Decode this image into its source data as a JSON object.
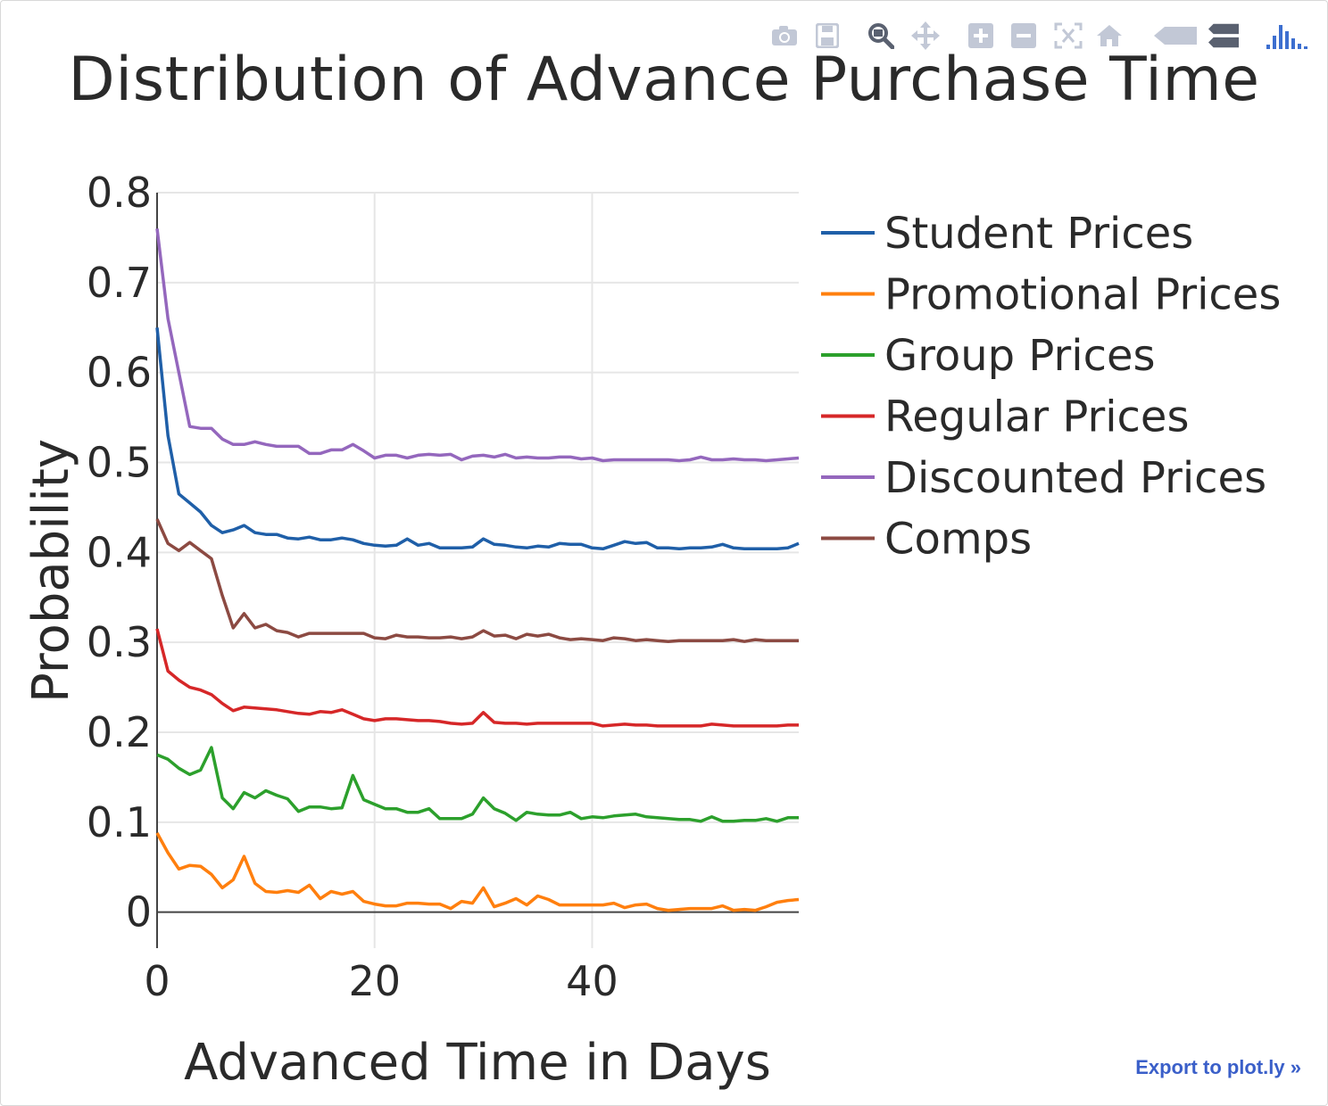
{
  "modebar": [
    {
      "name": "camera-icon"
    },
    {
      "name": "save-icon"
    },
    {
      "name": "zoom-icon"
    },
    {
      "name": "pan-icon"
    },
    {
      "name": "zoom-in-icon"
    },
    {
      "name": "zoom-out-icon"
    },
    {
      "name": "autoscale-icon"
    },
    {
      "name": "home-icon"
    },
    {
      "name": "hover-closest-icon"
    },
    {
      "name": "hover-compare-icon"
    },
    {
      "name": "plotly-logo-icon"
    }
  ],
  "export_link": "Export to plot.ly »",
  "chart_data": {
    "type": "line",
    "title": "Distribution of Advance Purchase Time",
    "xlabel": "Advanced Time in Days",
    "ylabel": "Probability",
    "xlim": [
      0,
      59
    ],
    "ylim": [
      -0.04,
      0.8
    ],
    "xticks": [
      0,
      20,
      40
    ],
    "xtick_labels": [
      "0",
      "20",
      "40"
    ],
    "yticks": [
      0,
      0.1,
      0.2,
      0.3,
      0.4,
      0.5,
      0.6,
      0.7,
      0.8
    ],
    "ytick_labels": [
      "0",
      "0.1",
      "0.2",
      "0.3",
      "0.4",
      "0.5",
      "0.6",
      "0.7",
      "0.8"
    ],
    "grid": true,
    "legend_position": "top-right outside plot",
    "x": [
      0,
      1,
      2,
      3,
      4,
      5,
      6,
      7,
      8,
      9,
      10,
      11,
      12,
      13,
      14,
      15,
      16,
      17,
      18,
      19,
      20,
      21,
      22,
      23,
      24,
      25,
      26,
      27,
      28,
      29,
      30,
      31,
      32,
      33,
      34,
      35,
      36,
      37,
      38,
      39,
      40,
      41,
      42,
      43,
      44,
      45,
      46,
      47,
      48,
      49,
      50,
      51,
      52,
      53,
      54,
      55,
      56,
      57,
      58,
      59
    ],
    "series": [
      {
        "name": "Student Prices",
        "color": "#1f5fa8",
        "values": [
          0.65,
          0.53,
          0.465,
          0.455,
          0.445,
          0.43,
          0.422,
          0.425,
          0.43,
          0.422,
          0.42,
          0.42,
          0.416,
          0.415,
          0.417,
          0.414,
          0.414,
          0.416,
          0.414,
          0.41,
          0.408,
          0.407,
          0.408,
          0.415,
          0.408,
          0.41,
          0.405,
          0.405,
          0.405,
          0.406,
          0.415,
          0.409,
          0.408,
          0.406,
          0.405,
          0.407,
          0.406,
          0.41,
          0.409,
          0.409,
          0.405,
          0.404,
          0.408,
          0.412,
          0.41,
          0.411,
          0.405,
          0.405,
          0.404,
          0.405,
          0.405,
          0.406,
          0.409,
          0.405,
          0.404,
          0.404,
          0.404,
          0.404,
          0.405,
          0.41
        ]
      },
      {
        "name": "Promotional Prices",
        "color": "#ff7f0e",
        "values": [
          0.088,
          0.066,
          0.048,
          0.052,
          0.051,
          0.042,
          0.027,
          0.036,
          0.062,
          0.032,
          0.023,
          0.022,
          0.024,
          0.022,
          0.03,
          0.015,
          0.023,
          0.02,
          0.023,
          0.012,
          0.009,
          0.007,
          0.007,
          0.01,
          0.01,
          0.009,
          0.009,
          0.004,
          0.012,
          0.01,
          0.027,
          0.006,
          0.01,
          0.015,
          0.008,
          0.018,
          0.014,
          0.008,
          0.008,
          0.008,
          0.008,
          0.008,
          0.01,
          0.005,
          0.008,
          0.009,
          0.004,
          0.002,
          0.003,
          0.004,
          0.004,
          0.004,
          0.007,
          0.002,
          0.003,
          0.002,
          0.006,
          0.011,
          0.013,
          0.014
        ]
      },
      {
        "name": "Group Prices",
        "color": "#2ca02c",
        "values": [
          0.175,
          0.17,
          0.16,
          0.153,
          0.158,
          0.183,
          0.127,
          0.115,
          0.133,
          0.127,
          0.135,
          0.13,
          0.126,
          0.112,
          0.117,
          0.117,
          0.115,
          0.116,
          0.152,
          0.125,
          0.12,
          0.115,
          0.115,
          0.111,
          0.111,
          0.115,
          0.104,
          0.104,
          0.104,
          0.109,
          0.127,
          0.115,
          0.11,
          0.102,
          0.111,
          0.109,
          0.108,
          0.108,
          0.111,
          0.104,
          0.106,
          0.105,
          0.107,
          0.108,
          0.109,
          0.106,
          0.105,
          0.104,
          0.103,
          0.103,
          0.101,
          0.106,
          0.101,
          0.101,
          0.102,
          0.102,
          0.104,
          0.101,
          0.105,
          0.105
        ]
      },
      {
        "name": "Regular Prices",
        "color": "#d62728",
        "values": [
          0.315,
          0.268,
          0.258,
          0.25,
          0.247,
          0.242,
          0.232,
          0.224,
          0.228,
          0.227,
          0.226,
          0.225,
          0.223,
          0.221,
          0.22,
          0.223,
          0.222,
          0.225,
          0.22,
          0.215,
          0.213,
          0.215,
          0.215,
          0.214,
          0.213,
          0.213,
          0.212,
          0.21,
          0.209,
          0.21,
          0.222,
          0.211,
          0.21,
          0.21,
          0.209,
          0.21,
          0.21,
          0.21,
          0.21,
          0.21,
          0.21,
          0.207,
          0.208,
          0.209,
          0.208,
          0.208,
          0.207,
          0.207,
          0.207,
          0.207,
          0.207,
          0.209,
          0.208,
          0.207,
          0.207,
          0.207,
          0.207,
          0.207,
          0.208,
          0.208
        ]
      },
      {
        "name": "Discounted Prices",
        "color": "#9467bd",
        "values": [
          0.76,
          0.66,
          0.6,
          0.54,
          0.538,
          0.538,
          0.526,
          0.52,
          0.52,
          0.523,
          0.52,
          0.518,
          0.518,
          0.518,
          0.51,
          0.51,
          0.514,
          0.514,
          0.52,
          0.513,
          0.505,
          0.508,
          0.508,
          0.505,
          0.508,
          0.509,
          0.508,
          0.509,
          0.503,
          0.507,
          0.508,
          0.506,
          0.509,
          0.505,
          0.506,
          0.505,
          0.505,
          0.506,
          0.506,
          0.504,
          0.505,
          0.502,
          0.503,
          0.503,
          0.503,
          0.503,
          0.503,
          0.503,
          0.502,
          0.503,
          0.506,
          0.503,
          0.503,
          0.504,
          0.503,
          0.503,
          0.502,
          0.503,
          0.504,
          0.505
        ]
      },
      {
        "name": "Comps",
        "color": "#8c4a42",
        "values": [
          0.437,
          0.41,
          0.402,
          0.411,
          0.402,
          0.393,
          0.352,
          0.316,
          0.332,
          0.316,
          0.32,
          0.313,
          0.311,
          0.306,
          0.31,
          0.31,
          0.31,
          0.31,
          0.31,
          0.31,
          0.305,
          0.304,
          0.308,
          0.306,
          0.306,
          0.305,
          0.305,
          0.306,
          0.304,
          0.306,
          0.313,
          0.307,
          0.308,
          0.304,
          0.309,
          0.307,
          0.309,
          0.305,
          0.303,
          0.304,
          0.303,
          0.302,
          0.305,
          0.304,
          0.302,
          0.303,
          0.302,
          0.301,
          0.302,
          0.302,
          0.302,
          0.302,
          0.302,
          0.303,
          0.301,
          0.303,
          0.302,
          0.302,
          0.302,
          0.302
        ]
      }
    ]
  }
}
